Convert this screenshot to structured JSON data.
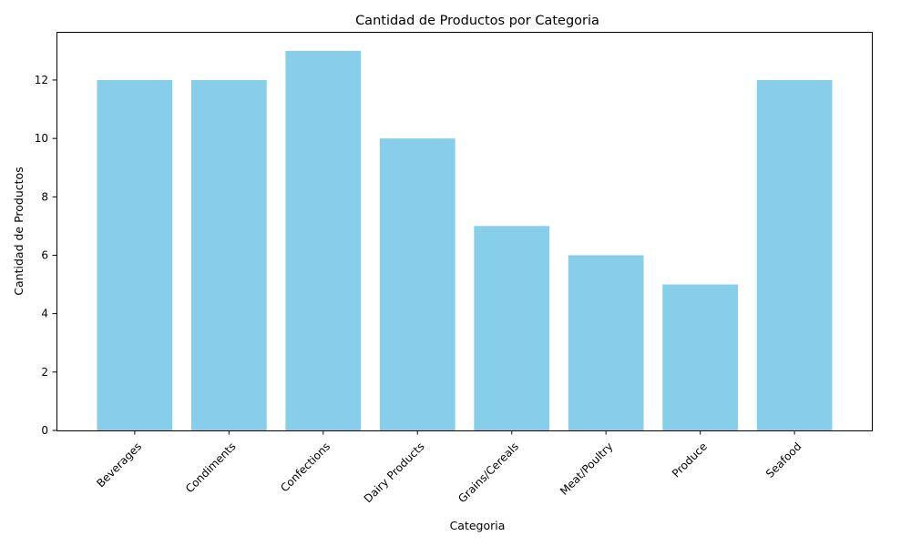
{
  "chart_data": {
    "type": "bar",
    "title": "Cantidad de Productos por Categoria",
    "xlabel": "Categoria",
    "ylabel": "Cantidad de Productos",
    "categories": [
      "Beverages",
      "Condiments",
      "Confections",
      "Dairy Products",
      "Grains/Cereals",
      "Meat/Poultry",
      "Produce",
      "Seafood"
    ],
    "values": [
      12,
      12,
      13,
      10,
      7,
      6,
      5,
      12
    ],
    "ylim": [
      0,
      13.65
    ],
    "yticks": [
      0,
      2,
      4,
      6,
      8,
      10,
      12
    ],
    "bar_color": "#87CEEB",
    "grid": false,
    "legend": "none"
  }
}
